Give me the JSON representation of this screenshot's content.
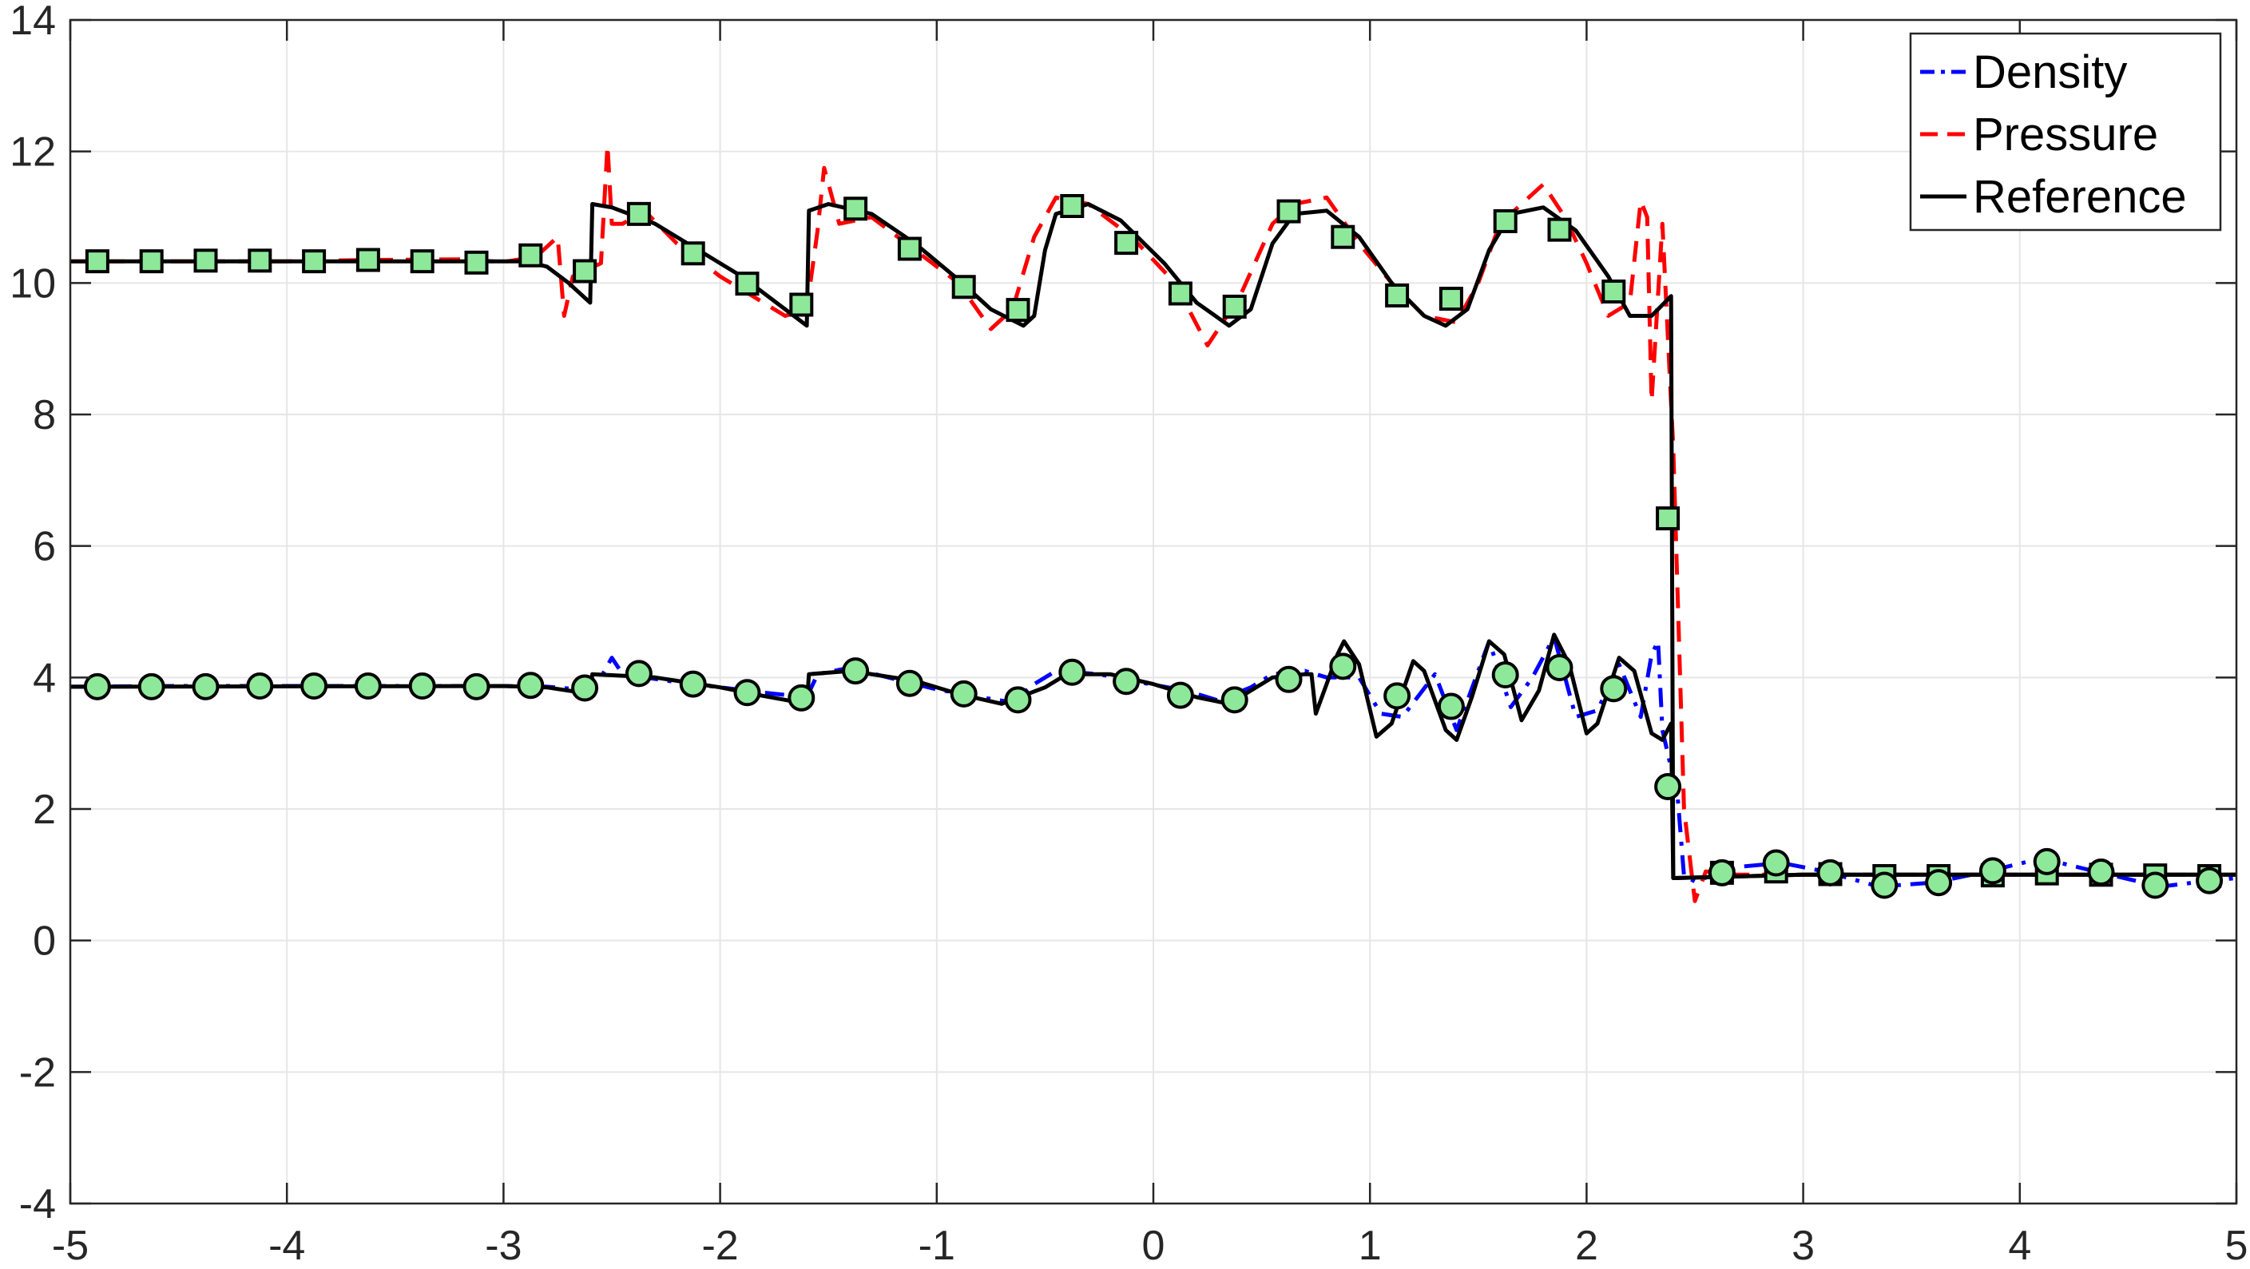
{
  "chart_data": {
    "type": "line",
    "title": "",
    "xlabel": "",
    "ylabel": "",
    "xlim": [
      -5,
      5
    ],
    "ylim": [
      -4,
      14
    ],
    "x_ticks": [
      -5,
      -4,
      -3,
      -2,
      -1,
      0,
      1,
      2,
      3,
      4,
      5
    ],
    "y_ticks": [
      -4,
      -2,
      0,
      2,
      4,
      6,
      8,
      10,
      12,
      14
    ],
    "x_tick_labels": [
      "-5",
      "-4",
      "-3",
      "-2",
      "-1",
      "0",
      "1",
      "2",
      "3",
      "4",
      "5"
    ],
    "y_tick_labels": [
      "-4",
      "-2",
      "0",
      "2",
      "4",
      "6",
      "8",
      "10",
      "12",
      "14"
    ],
    "grid": true,
    "legend_position": "top-right",
    "legend": [
      "Density",
      "Pressure",
      "Reference"
    ],
    "series": [
      {
        "name": "Density",
        "style": "dash-dot",
        "color": "#0000ff",
        "points": [
          [
            -5,
            3.86
          ],
          [
            -4.5,
            3.87
          ],
          [
            -4,
            3.87
          ],
          [
            -3.5,
            3.87
          ],
          [
            -3,
            3.87
          ],
          [
            -2.8,
            3.86
          ],
          [
            -2.65,
            3.82
          ],
          [
            -2.55,
            4.0
          ],
          [
            -2.5,
            4.3
          ],
          [
            -2.45,
            4.05
          ],
          [
            -2.2,
            3.93
          ],
          [
            -2.0,
            3.85
          ],
          [
            -1.8,
            3.77
          ],
          [
            -1.6,
            3.7
          ],
          [
            -1.55,
            4.05
          ],
          [
            -1.4,
            4.15
          ],
          [
            -1.2,
            3.98
          ],
          [
            -1.0,
            3.82
          ],
          [
            -0.8,
            3.7
          ],
          [
            -0.65,
            3.62
          ],
          [
            -0.55,
            3.9
          ],
          [
            -0.45,
            4.1
          ],
          [
            -0.25,
            4.05
          ],
          [
            -0.05,
            3.92
          ],
          [
            0.15,
            3.8
          ],
          [
            0.3,
            3.65
          ],
          [
            0.45,
            3.85
          ],
          [
            0.55,
            4.05
          ],
          [
            0.7,
            4.1
          ],
          [
            0.8,
            4.0
          ],
          [
            0.95,
            4.0
          ],
          [
            1.05,
            3.45
          ],
          [
            1.15,
            3.4
          ],
          [
            1.3,
            4.05
          ],
          [
            1.4,
            3.2
          ],
          [
            1.55,
            4.55
          ],
          [
            1.65,
            3.55
          ],
          [
            1.75,
            4.0
          ],
          [
            1.85,
            4.62
          ],
          [
            1.95,
            3.4
          ],
          [
            2.05,
            3.5
          ],
          [
            2.15,
            4.2
          ],
          [
            2.25,
            3.4
          ],
          [
            2.3,
            4.35
          ],
          [
            2.33,
            4.55
          ],
          [
            2.35,
            3.2
          ],
          [
            2.42,
            2.2
          ],
          [
            2.45,
            0.98
          ],
          [
            2.5,
            0.9
          ],
          [
            2.7,
            1.12
          ],
          [
            2.9,
            1.18
          ],
          [
            3.1,
            1.05
          ],
          [
            3.35,
            0.82
          ],
          [
            3.6,
            0.88
          ],
          [
            3.85,
            1.05
          ],
          [
            4.1,
            1.25
          ],
          [
            4.35,
            1.05
          ],
          [
            4.65,
            0.82
          ],
          [
            4.85,
            0.9
          ],
          [
            5,
            0.95
          ]
        ],
        "markers": [
          [
            -4.875,
            3.86
          ],
          [
            -4.625,
            3.86
          ],
          [
            -4.375,
            3.86
          ],
          [
            -4.125,
            3.87
          ],
          [
            -3.875,
            3.87
          ],
          [
            -3.625,
            3.87
          ],
          [
            -3.375,
            3.87
          ],
          [
            -3.125,
            3.86
          ],
          [
            -2.875,
            3.88
          ],
          [
            -2.625,
            3.84
          ],
          [
            -2.375,
            4.06
          ],
          [
            -2.125,
            3.9
          ],
          [
            -1.875,
            3.77
          ],
          [
            -1.625,
            3.69
          ],
          [
            -1.375,
            4.1
          ],
          [
            -1.125,
            3.91
          ],
          [
            -0.875,
            3.75
          ],
          [
            -0.625,
            3.66
          ],
          [
            -0.375,
            4.08
          ],
          [
            -0.125,
            3.94
          ],
          [
            0.125,
            3.73
          ],
          [
            0.375,
            3.66
          ],
          [
            0.625,
            3.97
          ],
          [
            0.875,
            4.17
          ],
          [
            1.125,
            3.72
          ],
          [
            1.375,
            3.56
          ],
          [
            1.625,
            4.04
          ],
          [
            1.875,
            4.15
          ],
          [
            2.125,
            3.83
          ],
          [
            2.375,
            2.34
          ],
          [
            2.625,
            1.03
          ],
          [
            2.875,
            1.18
          ],
          [
            3.125,
            1.03
          ],
          [
            3.375,
            0.84
          ],
          [
            3.625,
            0.88
          ],
          [
            3.875,
            1.06
          ],
          [
            4.125,
            1.2
          ],
          [
            4.375,
            1.04
          ],
          [
            4.625,
            0.84
          ],
          [
            4.875,
            0.91
          ]
        ],
        "marker": "circle"
      },
      {
        "name": "Pressure",
        "style": "dashed",
        "color": "#ff0000",
        "points": [
          [
            -5,
            10.33
          ],
          [
            -4,
            10.33
          ],
          [
            -3.6,
            10.35
          ],
          [
            -3.2,
            10.36
          ],
          [
            -3.0,
            10.32
          ],
          [
            -2.85,
            10.4
          ],
          [
            -2.75,
            10.7
          ],
          [
            -2.72,
            9.5
          ],
          [
            -2.68,
            10.1
          ],
          [
            -2.55,
            10.3
          ],
          [
            -2.52,
            12.1
          ],
          [
            -2.5,
            10.9
          ],
          [
            -2.45,
            10.9
          ],
          [
            -2.35,
            11.1
          ],
          [
            -2.2,
            10.6
          ],
          [
            -2.0,
            10.1
          ],
          [
            -1.85,
            9.8
          ],
          [
            -1.7,
            9.5
          ],
          [
            -1.6,
            9.6
          ],
          [
            -1.55,
            10.8
          ],
          [
            -1.52,
            11.75
          ],
          [
            -1.45,
            10.9
          ],
          [
            -1.3,
            11.0
          ],
          [
            -1.1,
            10.5
          ],
          [
            -0.9,
            10.0
          ],
          [
            -0.75,
            9.3
          ],
          [
            -0.65,
            9.6
          ],
          [
            -0.55,
            10.7
          ],
          [
            -0.45,
            11.3
          ],
          [
            -0.3,
            11.2
          ],
          [
            -0.1,
            10.7
          ],
          [
            0.1,
            10.0
          ],
          [
            0.25,
            9.05
          ],
          [
            0.4,
            9.8
          ],
          [
            0.55,
            10.9
          ],
          [
            0.65,
            11.2
          ],
          [
            0.8,
            11.3
          ],
          [
            0.95,
            10.6
          ],
          [
            1.1,
            10.0
          ],
          [
            1.25,
            9.5
          ],
          [
            1.4,
            9.4
          ],
          [
            1.5,
            10.0
          ],
          [
            1.6,
            10.9
          ],
          [
            1.7,
            11.2
          ],
          [
            1.8,
            11.5
          ],
          [
            1.9,
            11.0
          ],
          [
            2.0,
            10.3
          ],
          [
            2.1,
            9.5
          ],
          [
            2.2,
            9.7
          ],
          [
            2.25,
            11.25
          ],
          [
            2.28,
            11.0
          ],
          [
            2.3,
            8.2
          ],
          [
            2.35,
            10.9
          ],
          [
            2.4,
            7.5
          ],
          [
            2.45,
            2.0
          ],
          [
            2.5,
            0.6
          ],
          [
            2.55,
            1.05
          ],
          [
            2.7,
            1.0
          ],
          [
            3.5,
            1.0
          ],
          [
            4.5,
            1.0
          ],
          [
            5,
            1.0
          ]
        ],
        "markers": [
          [
            -4.875,
            10.33
          ],
          [
            -4.625,
            10.33
          ],
          [
            -4.375,
            10.34
          ],
          [
            -4.125,
            10.34
          ],
          [
            -3.875,
            10.33
          ],
          [
            -3.625,
            10.35
          ],
          [
            -3.375,
            10.33
          ],
          [
            -3.125,
            10.31
          ],
          [
            -2.875,
            10.42
          ],
          [
            -2.625,
            10.18
          ],
          [
            -2.375,
            11.05
          ],
          [
            -2.125,
            10.45
          ],
          [
            -1.875,
            9.99
          ],
          [
            -1.625,
            9.67
          ],
          [
            -1.375,
            11.13
          ],
          [
            -1.125,
            10.52
          ],
          [
            -0.875,
            9.94
          ],
          [
            -0.625,
            9.59
          ],
          [
            -0.375,
            11.17
          ],
          [
            -0.125,
            10.61
          ],
          [
            0.125,
            9.84
          ],
          [
            0.375,
            9.64
          ],
          [
            0.625,
            11.09
          ],
          [
            0.875,
            10.7
          ],
          [
            1.125,
            9.81
          ],
          [
            1.375,
            9.76
          ],
          [
            1.625,
            10.94
          ],
          [
            1.875,
            10.81
          ],
          [
            2.125,
            9.87
          ],
          [
            2.375,
            6.42
          ],
          [
            2.625,
            1.03
          ],
          [
            2.875,
            1.05
          ],
          [
            3.125,
            1.01
          ],
          [
            3.375,
            0.98
          ],
          [
            3.625,
            0.98
          ],
          [
            3.875,
            0.99
          ],
          [
            4.125,
            1.02
          ],
          [
            4.375,
            1.0
          ],
          [
            4.625,
            0.99
          ],
          [
            4.875,
            0.98
          ]
        ],
        "marker": "square"
      },
      {
        "name": "Reference",
        "style": "solid",
        "color": "#000000",
        "upper_points": [
          [
            -5,
            10.33
          ],
          [
            -3.0,
            10.33
          ],
          [
            -2.9,
            10.33
          ],
          [
            -2.8,
            10.25
          ],
          [
            -2.7,
            10.0
          ],
          [
            -2.6,
            9.7
          ],
          [
            -2.59,
            11.2
          ],
          [
            -2.5,
            11.15
          ],
          [
            -2.3,
            10.9
          ],
          [
            -2.1,
            10.5
          ],
          [
            -1.9,
            10.1
          ],
          [
            -1.7,
            9.6
          ],
          [
            -1.6,
            9.35
          ],
          [
            -1.59,
            11.1
          ],
          [
            -1.5,
            11.2
          ],
          [
            -1.3,
            11.05
          ],
          [
            -1.1,
            10.6
          ],
          [
            -0.9,
            10.05
          ],
          [
            -0.75,
            9.6
          ],
          [
            -0.6,
            9.35
          ],
          [
            -0.55,
            9.5
          ],
          [
            -0.5,
            10.5
          ],
          [
            -0.45,
            11.05
          ],
          [
            -0.3,
            11.2
          ],
          [
            -0.15,
            10.95
          ],
          [
            0.05,
            10.3
          ],
          [
            0.2,
            9.7
          ],
          [
            0.35,
            9.35
          ],
          [
            0.45,
            9.6
          ],
          [
            0.55,
            10.6
          ],
          [
            0.65,
            11.05
          ],
          [
            0.8,
            11.1
          ],
          [
            0.95,
            10.7
          ],
          [
            1.1,
            10.0
          ],
          [
            1.25,
            9.5
          ],
          [
            1.35,
            9.35
          ],
          [
            1.45,
            9.6
          ],
          [
            1.55,
            10.5
          ],
          [
            1.65,
            11.05
          ],
          [
            1.8,
            11.15
          ],
          [
            1.95,
            10.8
          ],
          [
            2.1,
            10.1
          ],
          [
            2.2,
            9.5
          ],
          [
            2.3,
            9.5
          ],
          [
            2.39,
            9.8
          ],
          [
            2.4,
            0.95
          ],
          [
            3.0,
            1.0
          ],
          [
            5,
            1.0
          ]
        ],
        "lower_points": [
          [
            -5,
            3.86
          ],
          [
            -3.0,
            3.87
          ],
          [
            -2.8,
            3.85
          ],
          [
            -2.6,
            3.75
          ],
          [
            -2.59,
            4.05
          ],
          [
            -2.3,
            4.0
          ],
          [
            -2.0,
            3.85
          ],
          [
            -1.8,
            3.72
          ],
          [
            -1.6,
            3.6
          ],
          [
            -1.59,
            4.05
          ],
          [
            -1.4,
            4.1
          ],
          [
            -1.1,
            3.95
          ],
          [
            -0.9,
            3.75
          ],
          [
            -0.7,
            3.6
          ],
          [
            -0.5,
            3.85
          ],
          [
            -0.4,
            4.05
          ],
          [
            -0.2,
            4.05
          ],
          [
            0.0,
            3.9
          ],
          [
            0.2,
            3.7
          ],
          [
            0.35,
            3.6
          ],
          [
            0.45,
            3.8
          ],
          [
            0.55,
            4.0
          ],
          [
            0.7,
            4.05
          ],
          [
            0.73,
            4.05
          ],
          [
            0.75,
            3.45
          ],
          [
            0.85,
            4.35
          ],
          [
            0.88,
            4.55
          ],
          [
            0.95,
            4.2
          ],
          [
            1.03,
            3.1
          ],
          [
            1.1,
            3.3
          ],
          [
            1.2,
            4.25
          ],
          [
            1.25,
            4.1
          ],
          [
            1.35,
            3.2
          ],
          [
            1.4,
            3.05
          ],
          [
            1.47,
            3.7
          ],
          [
            1.55,
            4.55
          ],
          [
            1.62,
            4.35
          ],
          [
            1.7,
            3.35
          ],
          [
            1.78,
            3.8
          ],
          [
            1.85,
            4.65
          ],
          [
            1.92,
            4.2
          ],
          [
            2.0,
            3.15
          ],
          [
            2.05,
            3.3
          ],
          [
            2.15,
            4.3
          ],
          [
            2.22,
            4.1
          ],
          [
            2.3,
            3.15
          ],
          [
            2.35,
            3.05
          ],
          [
            2.39,
            3.3
          ],
          [
            2.4,
            0.95
          ],
          [
            3.0,
            1.0
          ],
          [
            5,
            1.0
          ]
        ]
      }
    ]
  }
}
